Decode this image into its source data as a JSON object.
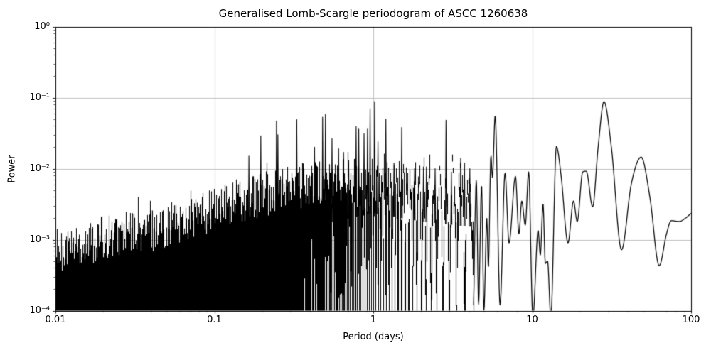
{
  "chart_data": {
    "type": "line",
    "title": "Generalised Lomb-Scargle periodogram of ASCC 1260638",
    "xlabel": "Period (days)",
    "ylabel": "Power",
    "x_scale": "log",
    "y_scale": "log",
    "xlim": [
      0.01,
      100
    ],
    "ylim": [
      0.0001,
      1
    ],
    "grid": true,
    "grid_color": "#b0b0b0",
    "line_color": "#000000",
    "background": "#ffffff",
    "x_ticks": [
      {
        "value": 0.01,
        "label": "0.01"
      },
      {
        "value": 0.1,
        "label": "0.1"
      },
      {
        "value": 1,
        "label": "1"
      },
      {
        "value": 10,
        "label": "10"
      },
      {
        "value": 100,
        "label": "100"
      }
    ],
    "y_ticks": [
      {
        "value": 1,
        "label": "10⁰"
      },
      {
        "value": 0.1,
        "label": "10⁻¹"
      },
      {
        "value": 0.01,
        "label": "10⁻²"
      },
      {
        "value": 0.001,
        "label": "10⁻³"
      },
      {
        "value": 0.0001,
        "label": "10⁻⁴"
      }
    ],
    "noise_comb": {
      "comment": "dense unresolved periodogram comb for short periods",
      "p_min": 0.01,
      "p_max": 4.28,
      "baseline_days": 30,
      "amp_jitter_dex": 0.32,
      "seed": 7,
      "envelope": [
        [
          0.01,
          0.00068
        ],
        [
          0.02,
          0.00105
        ],
        [
          0.04,
          0.0014
        ],
        [
          0.08,
          0.0022
        ],
        [
          0.16,
          0.0038
        ],
        [
          0.32,
          0.0055
        ],
        [
          0.63,
          0.0075
        ],
        [
          1.0,
          0.0095
        ],
        [
          2.0,
          0.0072
        ],
        [
          4.3,
          0.006
        ]
      ]
    },
    "peaks": [
      [
        0.165,
        0.015
      ],
      [
        0.196,
        0.029
      ],
      [
        0.246,
        0.047
      ],
      [
        0.251,
        0.03
      ],
      [
        0.33,
        0.049
      ],
      [
        0.427,
        0.02
      ],
      [
        0.48,
        0.053
      ],
      [
        0.5,
        0.058
      ],
      [
        0.55,
        0.0265
      ],
      [
        0.605,
        0.019
      ],
      [
        0.65,
        0.017
      ],
      [
        0.7,
        0.013
      ],
      [
        0.78,
        0.039
      ],
      [
        0.81,
        0.037
      ],
      [
        0.875,
        0.031
      ],
      [
        0.92,
        0.037
      ],
      [
        0.955,
        0.07
      ],
      [
        1.02,
        0.088
      ],
      [
        1.07,
        0.024
      ],
      [
        1.2,
        0.05
      ],
      [
        1.35,
        0.012
      ],
      [
        1.51,
        0.038
      ],
      [
        1.82,
        0.01
      ],
      [
        2.07,
        0.0106
      ],
      [
        2.16,
        0.0106
      ],
      [
        2.45,
        0.01
      ],
      [
        2.87,
        0.048
      ],
      [
        3.1,
        0.009
      ],
      [
        3.55,
        0.014
      ],
      [
        3.75,
        0.012
      ],
      [
        4.05,
        0.01
      ]
    ],
    "smooth_curve": [
      [
        4.28,
        0.00012
      ],
      [
        4.45,
        0.007
      ],
      [
        4.6,
        0.00012
      ],
      [
        4.8,
        0.006
      ],
      [
        4.97,
        0.0001
      ],
      [
        5.18,
        0.002
      ],
      [
        5.3,
        0.0004
      ],
      [
        5.5,
        0.0155
      ],
      [
        5.62,
        0.0075
      ],
      [
        5.85,
        0.056
      ],
      [
        6.28,
        0.00012
      ],
      [
        6.75,
        0.0087
      ],
      [
        7.15,
        0.0009
      ],
      [
        7.85,
        0.0078
      ],
      [
        8.25,
        0.0012
      ],
      [
        8.6,
        0.0035
      ],
      [
        9.05,
        0.0016
      ],
      [
        9.5,
        0.009
      ],
      [
        10.1,
        8e-05
      ],
      [
        10.9,
        0.00135
      ],
      [
        11.25,
        0.0006
      ],
      [
        11.7,
        0.0032
      ],
      [
        12.1,
        0.00046
      ],
      [
        12.5,
        0.0005
      ],
      [
        13.1,
        8e-05
      ],
      [
        14.2,
        0.0205
      ],
      [
        15.2,
        0.008
      ],
      [
        16.8,
        0.0009
      ],
      [
        18.2,
        0.0035
      ],
      [
        19.2,
        0.0018
      ],
      [
        20.8,
        0.009
      ],
      [
        21.9,
        0.0092
      ],
      [
        24.0,
        0.0029
      ],
      [
        26.0,
        0.02
      ],
      [
        28.3,
        0.088
      ],
      [
        31.5,
        0.02
      ],
      [
        36.5,
        0.00072
      ],
      [
        42.0,
        0.006
      ],
      [
        48.5,
        0.0145
      ],
      [
        55.0,
        0.004
      ],
      [
        63.0,
        0.00043
      ],
      [
        70.0,
        0.0012
      ],
      [
        75.0,
        0.00185
      ],
      [
        84.0,
        0.0018
      ],
      [
        92.0,
        0.002
      ],
      [
        100.0,
        0.00235
      ]
    ]
  }
}
